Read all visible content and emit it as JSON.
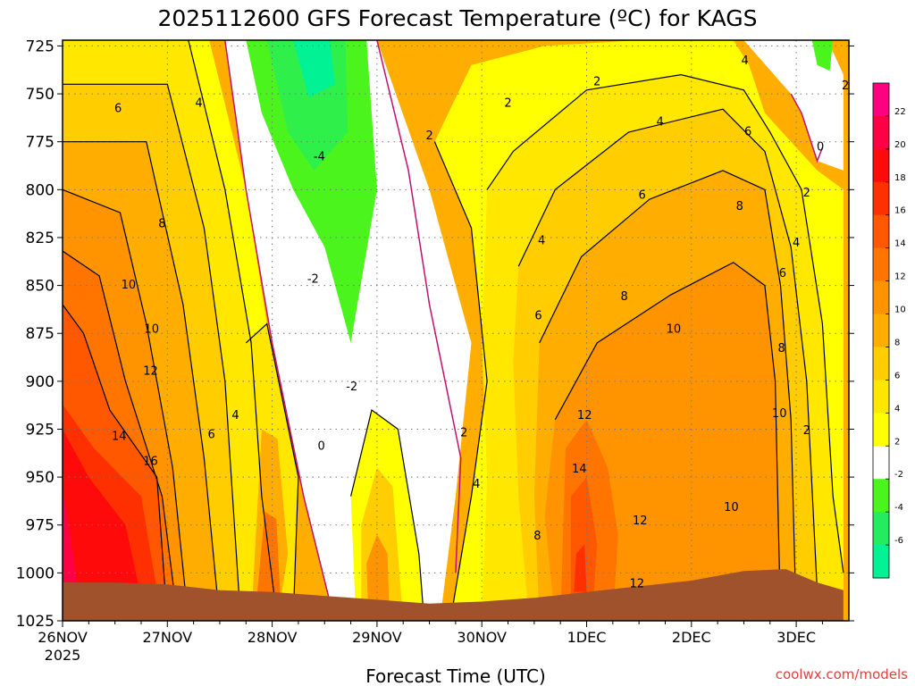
{
  "chart_data": {
    "type": "heatmap",
    "title": "2025112600 GFS Forecast Temperature (ºC) for KAGS",
    "xlabel": "Forecast Time (UTC)",
    "ylabel": "",
    "credit": "coolwx.com/models",
    "x_ticks": [
      {
        "label": "26NOV",
        "sub": "2025",
        "day": 0
      },
      {
        "label": "27NOV",
        "sub": "",
        "day": 1
      },
      {
        "label": "28NOV",
        "sub": "",
        "day": 2
      },
      {
        "label": "29NOV",
        "sub": "",
        "day": 3
      },
      {
        "label": "30NOV",
        "sub": "",
        "day": 4
      },
      {
        "label": "1DEC",
        "sub": "",
        "day": 5
      },
      {
        "label": "2DEC",
        "sub": "",
        "day": 6
      },
      {
        "label": "3DEC",
        "sub": "",
        "day": 7
      }
    ],
    "xlim_days": [
      0,
      7.45
    ],
    "y_ticks": [
      725,
      750,
      775,
      800,
      825,
      850,
      875,
      900,
      925,
      950,
      975,
      1000,
      1025
    ],
    "ylim": [
      1025,
      722
    ],
    "grid": true,
    "colorbar": {
      "bins": [
        {
          "low": -8,
          "high": -6,
          "color": "#00f294"
        },
        {
          "low": -6,
          "high": -4,
          "color": "#24ec61"
        },
        {
          "low": -4,
          "high": -2,
          "color": "#4cf41e"
        },
        {
          "low": -2,
          "high": 2,
          "color": "#ffffff"
        },
        {
          "low": 2,
          "high": 4,
          "color": "#ffff00"
        },
        {
          "low": 4,
          "high": 6,
          "color": "#ffe700"
        },
        {
          "low": 6,
          "high": 8,
          "color": "#ffcd00"
        },
        {
          "low": 8,
          "high": 10,
          "color": "#ffae00"
        },
        {
          "low": 10,
          "high": 12,
          "color": "#ff9300"
        },
        {
          "low": 12,
          "high": 14,
          "color": "#ff7500"
        },
        {
          "low": 14,
          "high": 16,
          "color": "#ff5800"
        },
        {
          "low": 16,
          "high": 18,
          "color": "#ff3000"
        },
        {
          "low": 18,
          "high": 20,
          "color": "#ff0a0a"
        },
        {
          "low": 20,
          "high": 22,
          "color": "#ff0045"
        },
        {
          "low": 22,
          "high": 24,
          "color": "#ff0080"
        }
      ],
      "tick_labels": [
        "22",
        "20",
        "18",
        "16",
        "14",
        "12",
        "10",
        "8",
        "6",
        "4",
        "2",
        "-2",
        "-4",
        "-6"
      ]
    },
    "surface_pressure": [
      {
        "day": 0.0,
        "p": 1005
      },
      {
        "day": 0.5,
        "p": 1005
      },
      {
        "day": 1.0,
        "p": 1006
      },
      {
        "day": 1.5,
        "p": 1009
      },
      {
        "day": 2.0,
        "p": 1010
      },
      {
        "day": 2.5,
        "p": 1012
      },
      {
        "day": 3.0,
        "p": 1014
      },
      {
        "day": 3.5,
        "p": 1016
      },
      {
        "day": 4.0,
        "p": 1015
      },
      {
        "day": 4.5,
        "p": 1013
      },
      {
        "day": 5.0,
        "p": 1010
      },
      {
        "day": 5.5,
        "p": 1007
      },
      {
        "day": 6.0,
        "p": 1004
      },
      {
        "day": 6.5,
        "p": 999
      },
      {
        "day": 6.9,
        "p": 998
      },
      {
        "day": 7.2,
        "p": 1005
      },
      {
        "day": 7.45,
        "p": 1009
      }
    ],
    "contour_labels": [
      {
        "text": "6",
        "day": 0.53,
        "p": 758
      },
      {
        "text": "4",
        "day": 1.3,
        "p": 755
      },
      {
        "text": "8",
        "day": 0.95,
        "p": 818
      },
      {
        "text": "10",
        "day": 0.63,
        "p": 850
      },
      {
        "text": "10",
        "day": 0.85,
        "p": 873
      },
      {
        "text": "12",
        "day": 0.84,
        "p": 895
      },
      {
        "text": "14",
        "day": 0.54,
        "p": 929
      },
      {
        "text": "16",
        "day": 0.84,
        "p": 942
      },
      {
        "text": "6",
        "day": 1.42,
        "p": 928
      },
      {
        "text": "4",
        "day": 1.65,
        "p": 918
      },
      {
        "text": "-4",
        "day": 2.45,
        "p": 783
      },
      {
        "text": "-2",
        "day": 2.39,
        "p": 847
      },
      {
        "text": "-2",
        "day": 2.76,
        "p": 903
      },
      {
        "text": "0",
        "day": 2.47,
        "p": 934
      },
      {
        "text": "2",
        "day": 3.5,
        "p": 772
      },
      {
        "text": "2",
        "day": 4.25,
        "p": 755
      },
      {
        "text": "2",
        "day": 5.1,
        "p": 744
      },
      {
        "text": "2",
        "day": 3.83,
        "p": 927
      },
      {
        "text": "4",
        "day": 3.95,
        "p": 954
      },
      {
        "text": "4",
        "day": 4.57,
        "p": 827
      },
      {
        "text": "6",
        "day": 4.54,
        "p": 866
      },
      {
        "text": "8",
        "day": 4.53,
        "p": 981
      },
      {
        "text": "4",
        "day": 5.7,
        "p": 765
      },
      {
        "text": "6",
        "day": 5.53,
        "p": 803
      },
      {
        "text": "8",
        "day": 5.36,
        "p": 856
      },
      {
        "text": "10",
        "day": 5.83,
        "p": 873
      },
      {
        "text": "12",
        "day": 4.98,
        "p": 918
      },
      {
        "text": "14",
        "day": 4.93,
        "p": 946
      },
      {
        "text": "12",
        "day": 5.51,
        "p": 973
      },
      {
        "text": "12",
        "day": 5.48,
        "p": 1006
      },
      {
        "text": "4",
        "day": 6.51,
        "p": 733
      },
      {
        "text": "6",
        "day": 6.54,
        "p": 770
      },
      {
        "text": "8",
        "day": 6.46,
        "p": 809
      },
      {
        "text": "10",
        "day": 6.38,
        "p": 966
      },
      {
        "text": "2",
        "day": 7.1,
        "p": 802
      },
      {
        "text": "4",
        "day": 7.0,
        "p": 828
      },
      {
        "text": "6",
        "day": 6.87,
        "p": 844
      },
      {
        "text": "8",
        "day": 6.86,
        "p": 883
      },
      {
        "text": "10",
        "day": 6.84,
        "p": 917
      },
      {
        "text": "2",
        "day": 7.1,
        "p": 926
      },
      {
        "text": "0",
        "day": 7.23,
        "p": 778
      },
      {
        "text": "2",
        "day": 7.47,
        "p": 746
      }
    ]
  }
}
